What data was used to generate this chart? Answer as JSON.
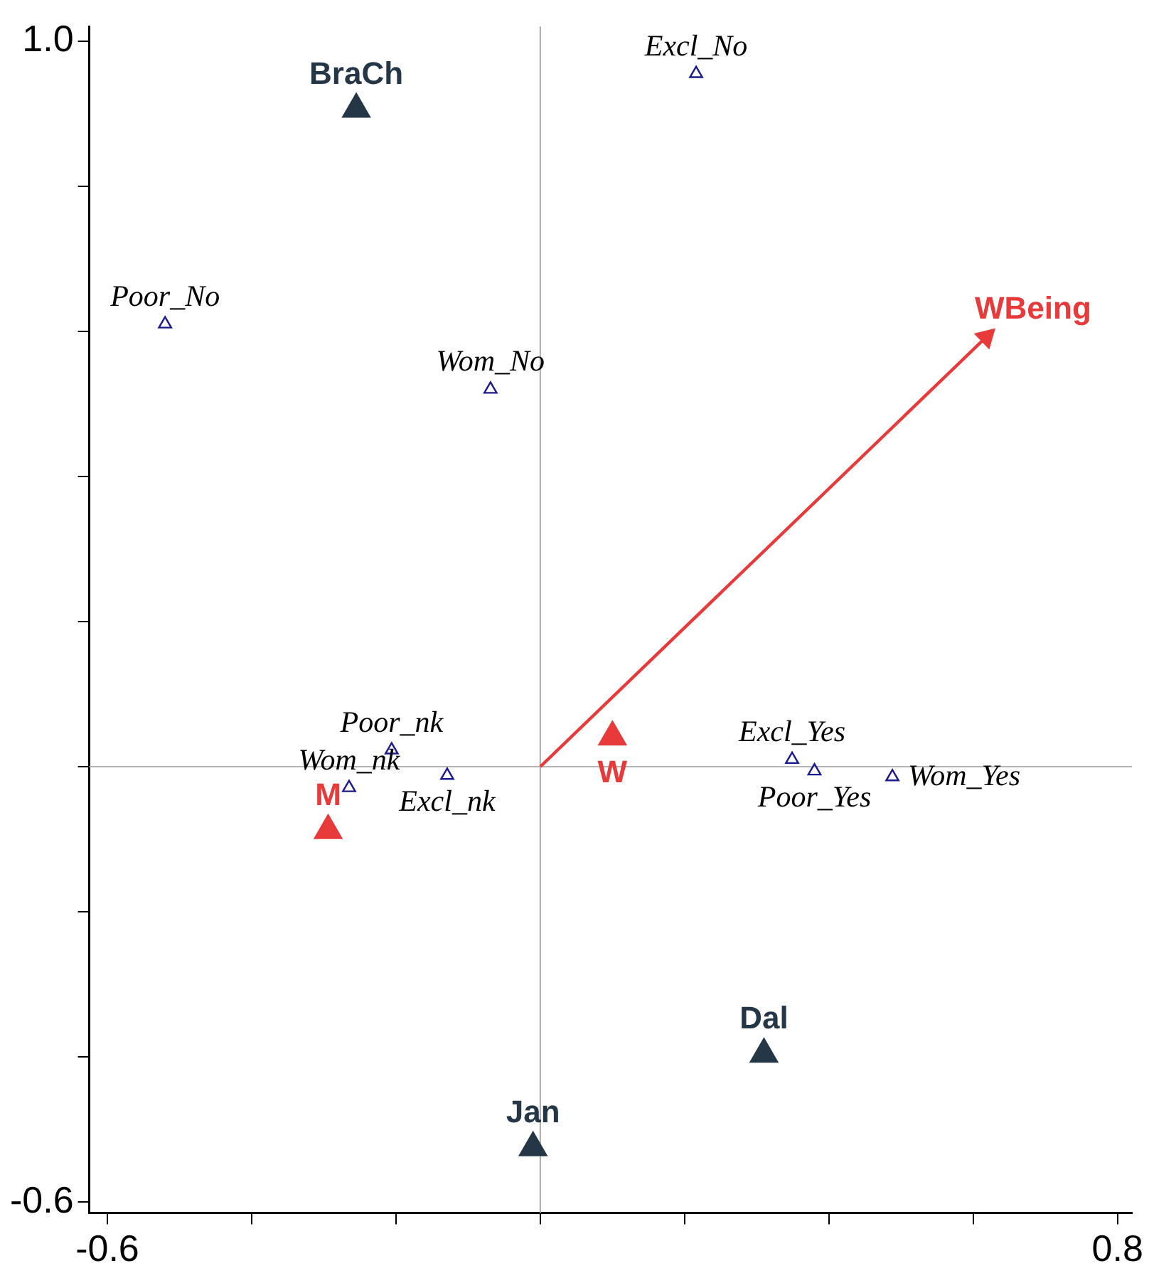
{
  "chart_data": {
    "type": "scatter",
    "marker": "triangle",
    "grid": false,
    "legend": false,
    "xlim": [
      -0.625,
      0.82
    ],
    "ylim": [
      -0.615,
      1.02
    ],
    "xticks": [
      -0.6,
      {
        "value": -0.4,
        "label": null
      },
      {
        "value": -0.2,
        "label": null
      },
      {
        "value": 0,
        "label": null
      },
      {
        "value": 0.2,
        "label": null
      },
      {
        "value": 0.4,
        "label": null
      },
      {
        "value": 0.6,
        "label": null
      },
      0.8
    ],
    "yticks": [
      -0.6,
      {
        "value": -0.4,
        "label": null
      },
      {
        "value": -0.2,
        "label": null
      },
      {
        "value": 0,
        "label": null
      },
      {
        "value": 0.2,
        "label": null
      },
      {
        "value": 0.4,
        "label": null
      },
      {
        "value": 0.6,
        "label": null
      },
      {
        "value": 0.8,
        "label": null
      },
      {
        "value": 1,
        "label": "1.0"
      }
    ],
    "ref_lines": [
      {
        "axis": "x",
        "value": 0,
        "color": "#aaaaaa"
      },
      {
        "axis": "y",
        "value": 0,
        "color": "#b4b4b4"
      }
    ],
    "series": [
      {
        "color": "#253746",
        "x": [
          -0.255,
          0.31,
          -0.01
        ],
        "values": [
          0.906,
          -0.396,
          -0.525
        ]
      },
      {
        "color": "#e8393b",
        "x": [
          -0.294,
          0.1
        ],
        "values": [
          -0.088,
          0.041
        ]
      },
      {
        "color": "#1a1a8c",
        "x": [
          0.216,
          -0.52,
          -0.069,
          -0.206,
          -0.265,
          -0.129,
          0.349,
          0.38,
          0.488
        ],
        "values": [
          0.955,
          0.61,
          0.52,
          0.023,
          -0.029,
          -0.012,
          0.01,
          -0.006,
          -0.014
        ]
      },
      {
        "type": "line",
        "name": "WBeing",
        "color": "#e8393b",
        "x": [
          0,
          0.618
        ],
        "values": [
          0,
          0.592
        ]
      }
    ],
    "annotations": [
      {
        "text": "BraCh",
        "x": -0.255,
        "y": 0.906
      },
      {
        "text": "Dal",
        "x": 0.31,
        "y": -0.396
      },
      {
        "text": "Jan",
        "x": -0.01,
        "y": -0.525
      },
      {
        "text": "M",
        "x": -0.294,
        "y": -0.088
      },
      {
        "text": "W",
        "x": 0.1,
        "y": 0.041
      },
      {
        "text": "Excl_No",
        "x": 0.216,
        "y": 0.955
      },
      {
        "text": "Poor_No",
        "x": -0.52,
        "y": 0.61
      },
      {
        "text": "Wom_No",
        "x": -0.069,
        "y": 0.52
      },
      {
        "text": "Poor_nk",
        "x": -0.206,
        "y": 0.023
      },
      {
        "text": "Wom_nk",
        "x": -0.265,
        "y": -0.029
      },
      {
        "text": "Excl_nk",
        "x": -0.129,
        "y": -0.012
      },
      {
        "text": "Excl_Yes",
        "x": 0.349,
        "y": 0.01
      },
      {
        "text": "Poor_Yes",
        "x": 0.38,
        "y": -0.006
      },
      {
        "text": "Wom_Yes",
        "x": 0.488,
        "y": -0.014
      }
    ]
  }
}
